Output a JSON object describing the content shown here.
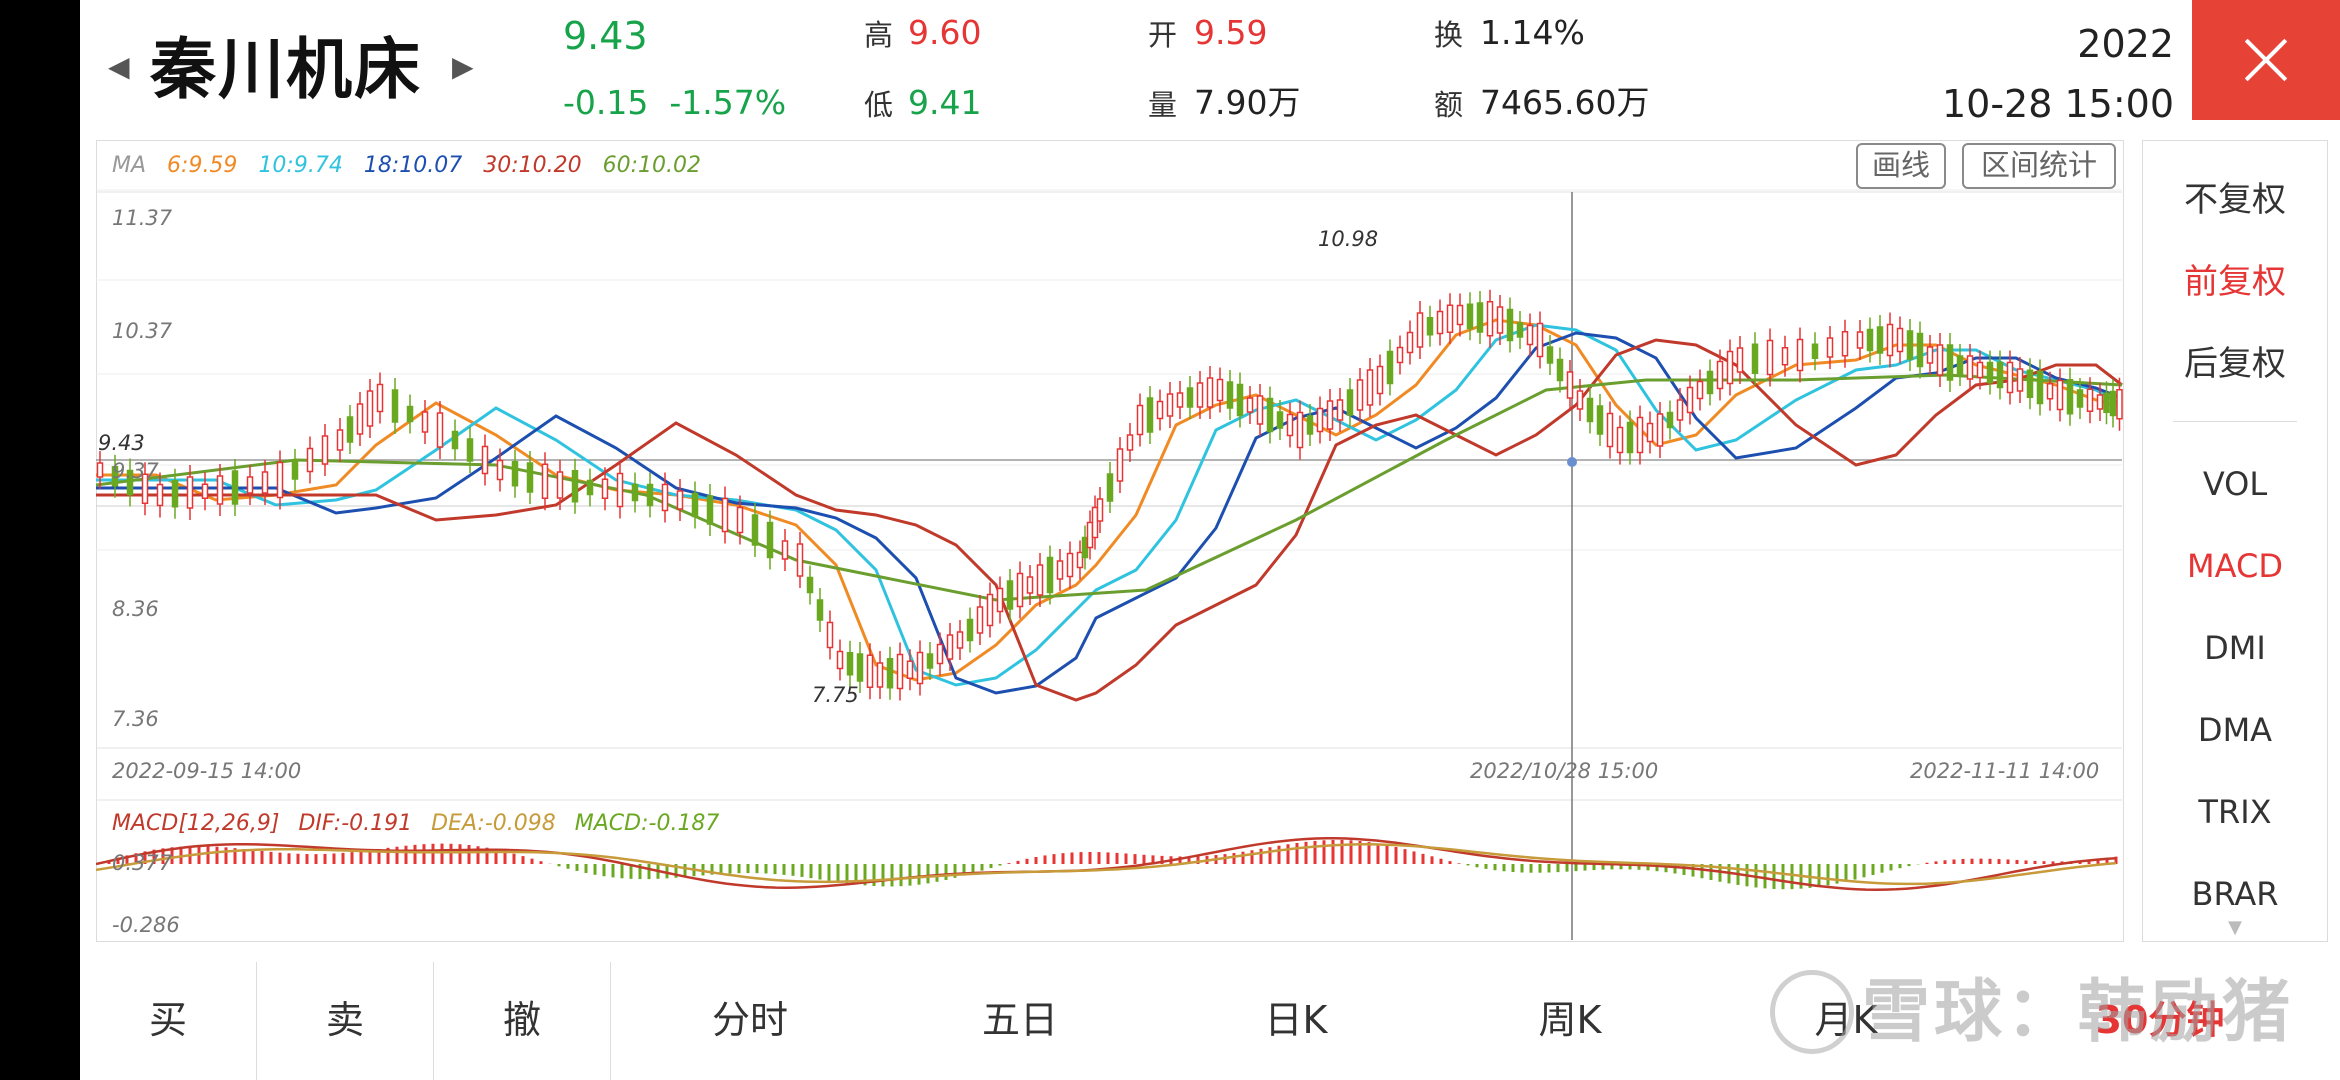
{
  "header": {
    "stock_name": "秦川机床",
    "price": "9.43",
    "change": "-0.15",
    "change_pct": "-1.57%",
    "high_label": "高",
    "high": "9.60",
    "low_label": "低",
    "low": "9.41",
    "open_label": "开",
    "open": "9.59",
    "volume_label": "量",
    "volume": "7.90万",
    "turnover_label": "换",
    "turnover": "1.14%",
    "amount_label": "额",
    "amount": "7465.60万",
    "date_year": "2022",
    "date_time": "10-28  15:00"
  },
  "toolbar": {
    "draw_line": "画线",
    "range_stats": "区间统计"
  },
  "ma_legend": {
    "label": "MA",
    "ma6": "6:9.59",
    "ma10": "10:9.74",
    "ma18": "18:10.07",
    "ma30": "30:10.20",
    "ma60": "60:10.02"
  },
  "macd_legend": {
    "label": "MACD[12,26,9]",
    "dif": "DIF:-0.191",
    "dea": "DEA:-0.098",
    "macd": "MACD:-0.187"
  },
  "axes": {
    "y_labels": [
      "11.37",
      "10.37",
      "9.43",
      "9.37",
      "8.36",
      "7.36"
    ],
    "x_labels": [
      "2022-09-15   14:00",
      "2022/10/28   15:00",
      "2022-11-11   14:00"
    ],
    "high_mark": "10.98",
    "low_mark": "7.75",
    "macd_top": "0.377",
    "macd_bottom": "-0.286"
  },
  "colors": {
    "up": "#e53535",
    "down": "#6aa820",
    "ma6": "#f08a24",
    "ma10": "#2fc3e0",
    "ma18": "#1c4fb0",
    "ma30": "#c0392b",
    "ma60": "#6a9e2f"
  },
  "right_panel": {
    "adjust": [
      "不复权",
      "前复权",
      "后复权"
    ],
    "indicators": [
      "VOL",
      "MACD",
      "DMI",
      "DMA",
      "TRIX",
      "BRAR"
    ]
  },
  "bottom_tabs": [
    "买",
    "卖",
    "撤",
    "分时",
    "五日",
    "日K",
    "周K",
    "月K",
    "30分钟"
  ],
  "watermark": "雪球：韩励猪"
}
